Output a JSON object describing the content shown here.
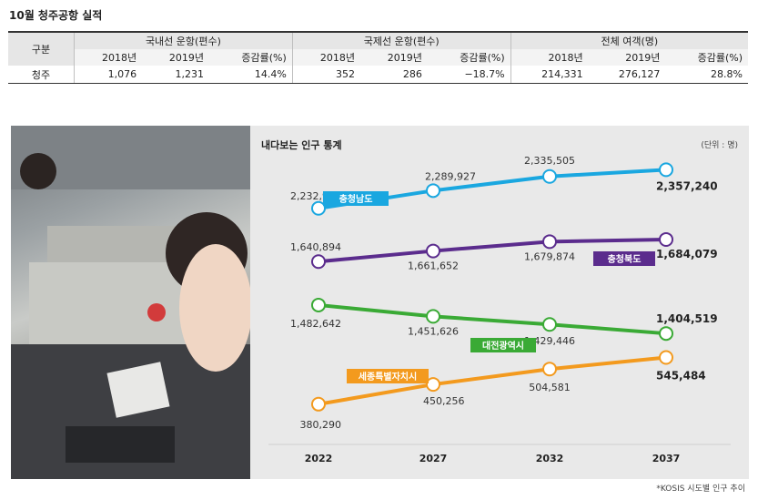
{
  "table": {
    "title": "10월 청주공항 실적",
    "header_row1": [
      "구분",
      "국내선 운항(편수)",
      "국제선 운항(편수)",
      "전체 여객(명)"
    ],
    "header_row2": [
      "2018년",
      "2019년",
      "증감률(%)",
      "2018년",
      "2019년",
      "증감률(%)",
      "2018년",
      "2019년",
      "증감률(%)"
    ],
    "row": {
      "label": "청주",
      "values": [
        "1,076",
        "1,231",
        "14.4%",
        "352",
        "286",
        "−18.7%",
        "214,331",
        "276,127",
        "28.8%"
      ]
    }
  },
  "chart_data": {
    "type": "line",
    "title": "내다보는 인구 통계",
    "unit": "(단위 : 명)",
    "x": [
      "2022",
      "2027",
      "2032",
      "2037"
    ],
    "ylim": [
      300000,
      2450000
    ],
    "series": [
      {
        "name": "충청남도",
        "values": [
          2232940,
          2289927,
          2335505,
          2357240
        ],
        "labels": [
          "2,232,940",
          "2,289,927",
          "2,335,505",
          "2,357,240"
        ],
        "color": "#1aa7e0",
        "label_color": "#1aa7e0"
      },
      {
        "name": "충청북도",
        "values": [
          1640894,
          1661652,
          1679874,
          1684079
        ],
        "labels": [
          "1,640,894",
          "1,661,652",
          "1,679,874",
          "1,684,079"
        ],
        "color": "#5b2c8d",
        "label_color": "#5b2c8d"
      },
      {
        "name": "대전광역시",
        "values": [
          1482642,
          1451626,
          1429446,
          1404519
        ],
        "labels": [
          "1,482,642",
          "1,451,626",
          "1,429,446",
          "1,404,519"
        ],
        "color": "#3aaa35",
        "label_color": "#2e9a2a"
      },
      {
        "name": "세종특별자치시",
        "values": [
          380290,
          450256,
          504581,
          545484
        ],
        "labels": [
          "380,290",
          "450,256",
          "504,581",
          "545,484"
        ],
        "color": "#f39a1e",
        "label_color": "#f39a1e"
      }
    ],
    "grid": false,
    "legend": "inline-labels"
  },
  "source": "*KOSIS 시도별 인구 추이"
}
